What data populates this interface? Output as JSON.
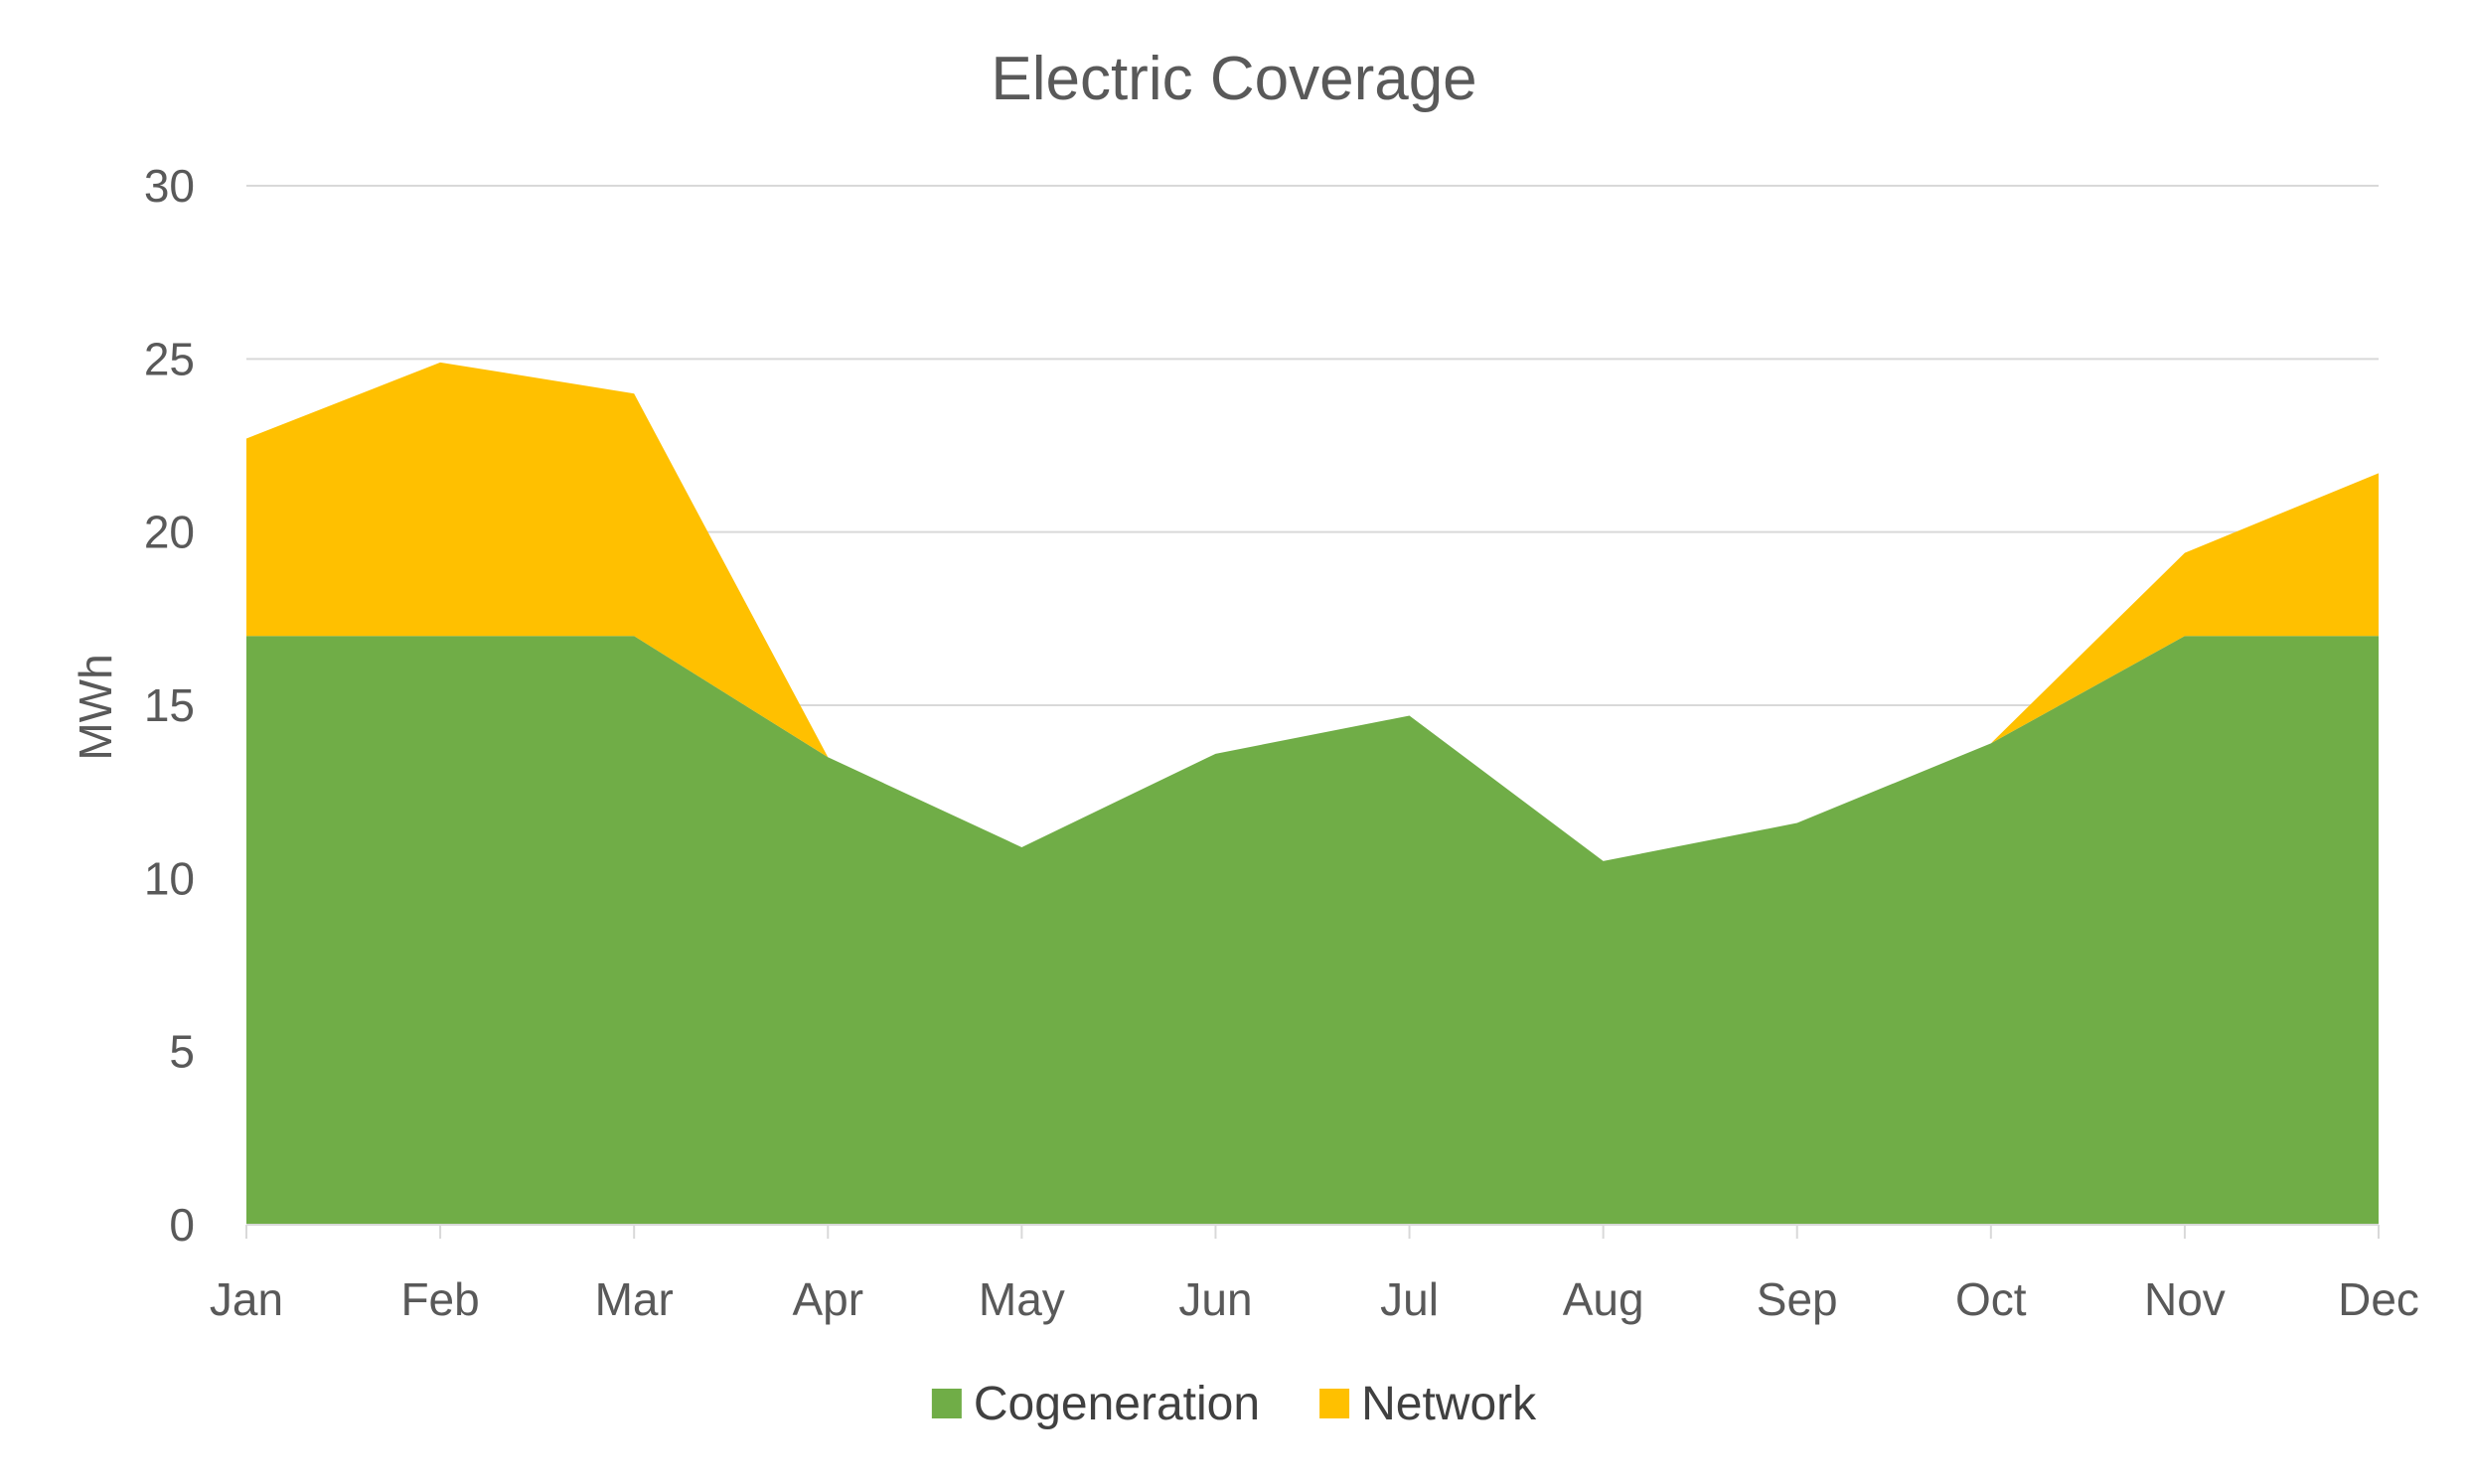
{
  "chart_data": {
    "type": "area",
    "stacked": true,
    "title": "Electric Coverage",
    "xlabel": "",
    "ylabel": "MWh",
    "categories": [
      "Jan",
      "Feb",
      "Mar",
      "Apr",
      "May",
      "Jun",
      "Jul",
      "Aug",
      "Sep",
      "Oct",
      "Nov",
      "Dec"
    ],
    "ylim": [
      0,
      30
    ],
    "yticks": [
      "0",
      "5",
      "10",
      "15",
      "20",
      "25",
      "30"
    ],
    "grid": true,
    "legend_position": "bottom",
    "series": [
      {
        "name": "Cogeneration",
        "color": "#70AD47",
        "values": [
          17,
          17,
          17,
          13.5,
          10.9,
          13.6,
          14.7,
          10.5,
          11.6,
          13.9,
          17,
          17
        ]
      },
      {
        "name": "Network",
        "color": "#FFC000",
        "values": [
          5.7,
          7.9,
          7.0,
          0,
          0,
          0,
          0,
          0,
          0,
          0,
          2.4,
          4.7
        ]
      }
    ]
  }
}
